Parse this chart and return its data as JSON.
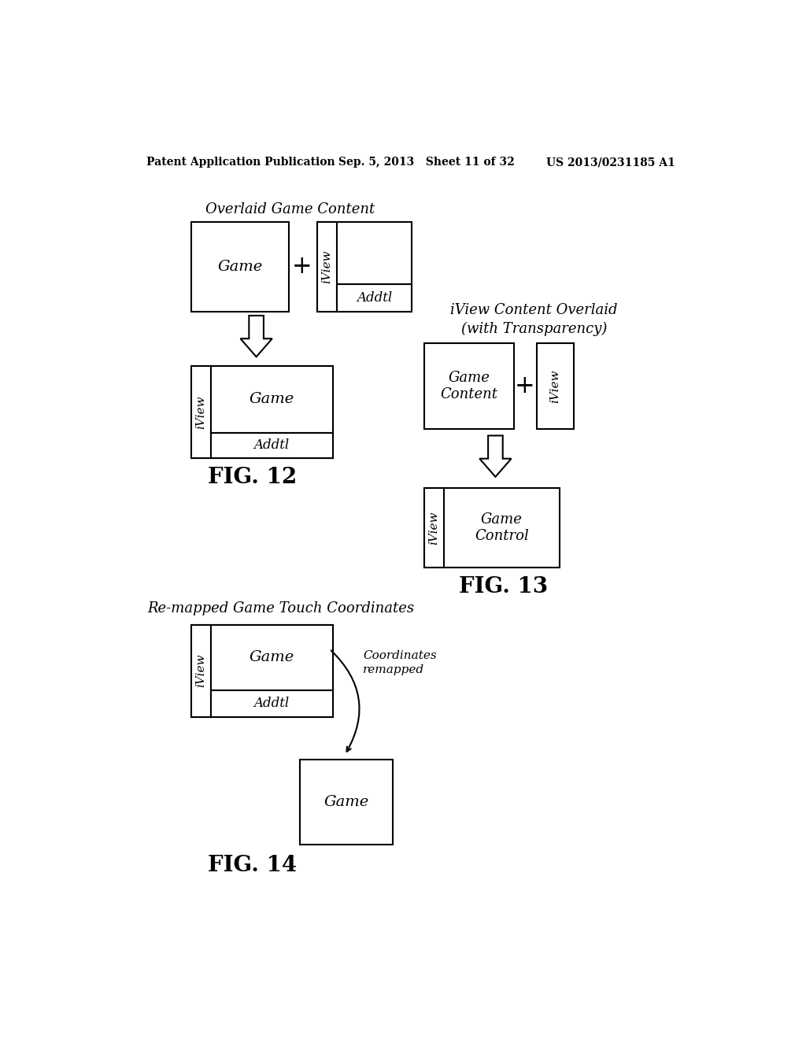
{
  "bg_color": "#ffffff",
  "header_left": "Patent Application Publication",
  "header_mid": "Sep. 5, 2013   Sheet 11 of 32",
  "header_right": "US 2013/0231185 A1",
  "fig12_label": "FIG. 12",
  "fig13_label": "FIG. 13",
  "fig14_label": "FIG. 14",
  "title_fig12": "Overlaid Game Content",
  "title_fig13": "iView Content Overlaid\n(with Transparency)",
  "title_fig14": "Re-mapped Game Touch Coordinates",
  "coord_label": "Coordinates\nremapped"
}
